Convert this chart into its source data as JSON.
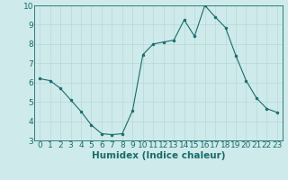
{
  "x": [
    0,
    1,
    2,
    3,
    4,
    5,
    6,
    7,
    8,
    9,
    10,
    11,
    12,
    13,
    14,
    15,
    16,
    17,
    18,
    19,
    20,
    21,
    22,
    23
  ],
  "y": [
    6.2,
    6.1,
    5.7,
    5.1,
    4.5,
    3.8,
    3.35,
    3.3,
    3.35,
    4.55,
    7.45,
    8.0,
    8.1,
    8.2,
    9.25,
    8.4,
    10.0,
    9.4,
    8.85,
    7.4,
    6.1,
    5.2,
    4.65,
    4.45
  ],
  "xlabel": "Humidex (Indice chaleur)",
  "ylim": [
    3,
    10
  ],
  "xlim": [
    -0.5,
    23.5
  ],
  "yticks": [
    3,
    4,
    5,
    6,
    7,
    8,
    9,
    10
  ],
  "xticks": [
    0,
    1,
    2,
    3,
    4,
    5,
    6,
    7,
    8,
    9,
    10,
    11,
    12,
    13,
    14,
    15,
    16,
    17,
    18,
    19,
    20,
    21,
    22,
    23
  ],
  "line_color": "#1a6b6b",
  "marker_color": "#1a6b6b",
  "bg_color": "#ceeaea",
  "grid_color_major": "#b8d8d8",
  "grid_color_minor": "#d4e8e8",
  "axis_color": "#1a6b6b",
  "tick_color": "#1a6b6b",
  "label_color": "#1a6b6b",
  "font_size": 6.5,
  "label_font_size": 7.5
}
